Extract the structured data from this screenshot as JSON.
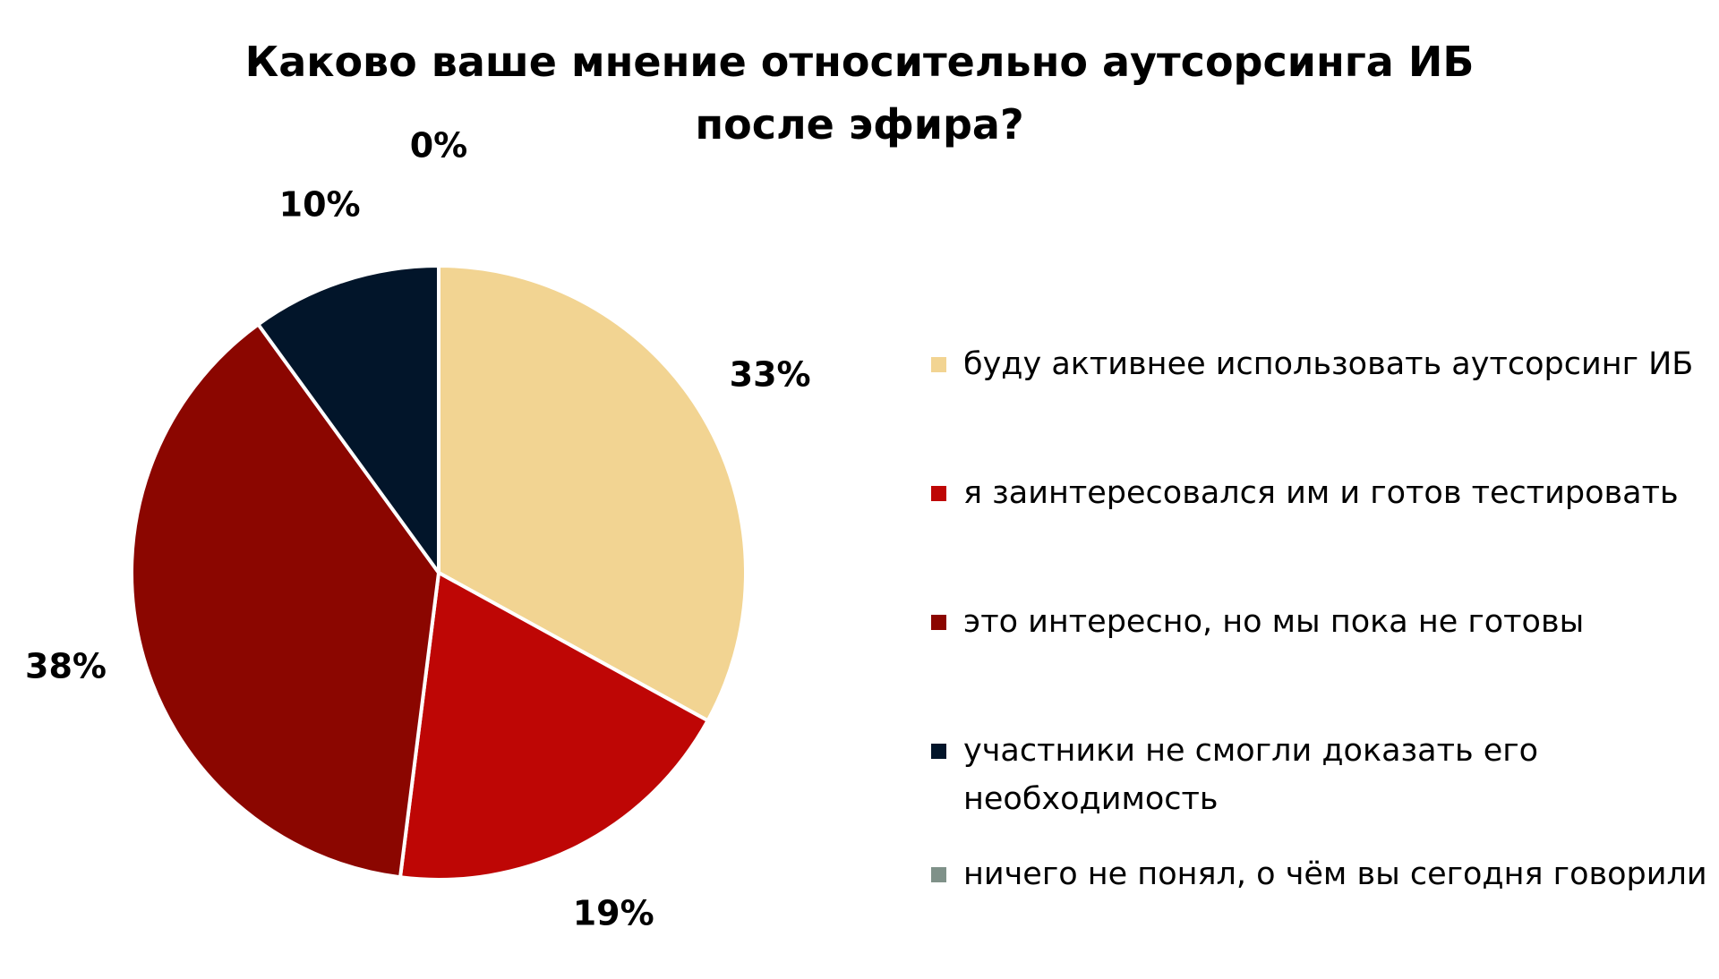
{
  "chart_data": {
    "type": "pie",
    "title_lines": [
      "Каково ваше мнение относительно аутсорсинга ИБ",
      "после эфира?"
    ],
    "slices": [
      {
        "label": "буду активнее использовать аутсорсинг ИБ",
        "value": 33,
        "display": "33%",
        "color": "#F2D492"
      },
      {
        "label": "я заинтересовался им и готов тестировать",
        "value": 19,
        "display": "19%",
        "color": "#BE0605"
      },
      {
        "label": "это интересно, но мы пока не готовы",
        "value": 38,
        "display": "38%",
        "color": "#8B0600"
      },
      {
        "label": "участники не смогли доказать его необходимость",
        "value": 10,
        "display": "10%",
        "color": "#02152A"
      },
      {
        "label": "ничего не понял, о чём вы сегодня говорили",
        "value": 0,
        "display": "0%",
        "color": "#7F9189"
      }
    ],
    "legend_position": "right",
    "start_angle": "12 o'clock",
    "direction": "clockwise"
  }
}
